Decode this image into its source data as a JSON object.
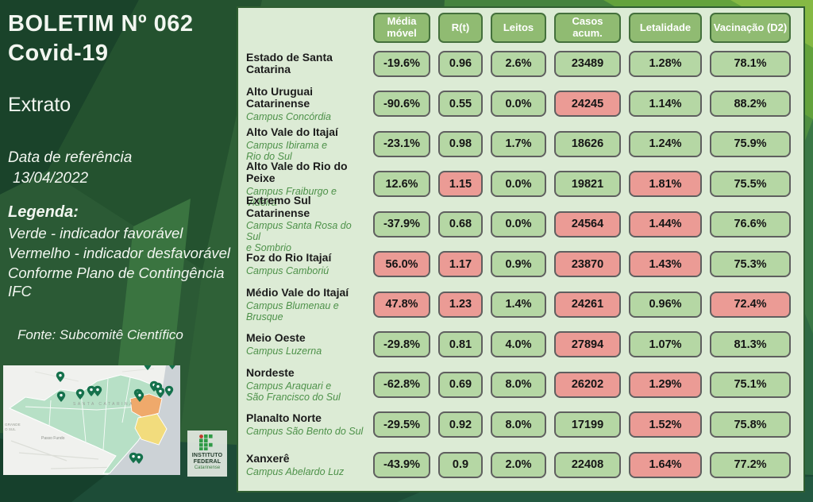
{
  "sidebar": {
    "title_line1": "BOLETIM Nº 062",
    "title_line2": "Covid-19",
    "subtitle": "Extrato",
    "date_label": "Data de referência",
    "date_value": "13/04/2022",
    "legend_title": "Legenda:",
    "legend_lines": [
      "Verde - indicador favorável",
      "Vermelho - indicador desfavorável",
      "Conforme Plano de Contingência IFC"
    ],
    "source": "Fonte: Subcomitê Científico",
    "map": {
      "state_label": "SANTA CATARINA",
      "neighbor_lines": [
        "GRANDE",
        "O SUL"
      ],
      "city_label": "Passo Fundo",
      "colors": {
        "state": "#b7e0c6",
        "alert_orange": "#efa96b",
        "alert_yellow": "#f2dc7d",
        "sea": "#ccd2d6",
        "land": "#f0f1ee",
        "pin": "#15714c"
      }
    },
    "logo": {
      "line1": "INSTITUTO",
      "line2": "FEDERAL",
      "line3": "Catarinense"
    }
  },
  "table": {
    "columns": [
      "Média móvel",
      "R(t)",
      "Leitos",
      "Casos acum.",
      "Letalidade",
      "Vacinação (D2)"
    ],
    "status_colors": {
      "favorable": "#b5d7a4",
      "unfavorable": "#eb9b95"
    },
    "rows": [
      {
        "region": "Estado de Santa Catarina",
        "campus": "",
        "cells": [
          {
            "value": "-19.6%",
            "status": "favorable"
          },
          {
            "value": "0.96",
            "status": "favorable"
          },
          {
            "value": "2.6%",
            "status": "favorable"
          },
          {
            "value": "23489",
            "status": "favorable"
          },
          {
            "value": "1.28%",
            "status": "favorable"
          },
          {
            "value": "78.1%",
            "status": "favorable"
          }
        ]
      },
      {
        "region": "Alto Uruguai Catarinense",
        "campus": "Campus Concórdia",
        "cells": [
          {
            "value": "-90.6%",
            "status": "favorable"
          },
          {
            "value": "0.55",
            "status": "favorable"
          },
          {
            "value": "0.0%",
            "status": "favorable"
          },
          {
            "value": "24245",
            "status": "unfavorable"
          },
          {
            "value": "1.14%",
            "status": "favorable"
          },
          {
            "value": "88.2%",
            "status": "favorable"
          }
        ]
      },
      {
        "region": "Alto Vale do Itajaí",
        "campus": "Campus Ibirama e\nRio do Sul",
        "cells": [
          {
            "value": "-23.1%",
            "status": "favorable"
          },
          {
            "value": "0.98",
            "status": "favorable"
          },
          {
            "value": "1.7%",
            "status": "favorable"
          },
          {
            "value": "18626",
            "status": "favorable"
          },
          {
            "value": "1.24%",
            "status": "favorable"
          },
          {
            "value": "75.9%",
            "status": "favorable"
          }
        ]
      },
      {
        "region": "Alto Vale do Rio do Peixe",
        "campus": "Campus Fraiburgo e Videira",
        "cells": [
          {
            "value": "12.6%",
            "status": "favorable"
          },
          {
            "value": "1.15",
            "status": "unfavorable"
          },
          {
            "value": "0.0%",
            "status": "favorable"
          },
          {
            "value": "19821",
            "status": "favorable"
          },
          {
            "value": "1.81%",
            "status": "unfavorable"
          },
          {
            "value": "75.5%",
            "status": "favorable"
          }
        ]
      },
      {
        "region": "Extremo Sul Catarinense",
        "campus": "Campus Santa Rosa do Sul\ne Sombrio",
        "cells": [
          {
            "value": "-37.9%",
            "status": "favorable"
          },
          {
            "value": "0.68",
            "status": "favorable"
          },
          {
            "value": "0.0%",
            "status": "favorable"
          },
          {
            "value": "24564",
            "status": "unfavorable"
          },
          {
            "value": "1.44%",
            "status": "unfavorable"
          },
          {
            "value": "76.6%",
            "status": "favorable"
          }
        ]
      },
      {
        "region": "Foz do Rio Itajaí",
        "campus": "Campus Camboriú",
        "cells": [
          {
            "value": "56.0%",
            "status": "unfavorable"
          },
          {
            "value": "1.17",
            "status": "unfavorable"
          },
          {
            "value": "0.9%",
            "status": "favorable"
          },
          {
            "value": "23870",
            "status": "unfavorable"
          },
          {
            "value": "1.43%",
            "status": "unfavorable"
          },
          {
            "value": "75.3%",
            "status": "favorable"
          }
        ]
      },
      {
        "region": "Médio Vale do Itajaí",
        "campus": "Campus Blumenau e\nBrusque",
        "cells": [
          {
            "value": "47.8%",
            "status": "unfavorable"
          },
          {
            "value": "1.23",
            "status": "unfavorable"
          },
          {
            "value": "1.4%",
            "status": "favorable"
          },
          {
            "value": "24261",
            "status": "unfavorable"
          },
          {
            "value": "0.96%",
            "status": "favorable"
          },
          {
            "value": "72.4%",
            "status": "unfavorable"
          }
        ]
      },
      {
        "region": "Meio Oeste",
        "campus": "Campus Luzerna",
        "cells": [
          {
            "value": "-29.8%",
            "status": "favorable"
          },
          {
            "value": "0.81",
            "status": "favorable"
          },
          {
            "value": "4.0%",
            "status": "favorable"
          },
          {
            "value": "27894",
            "status": "unfavorable"
          },
          {
            "value": "1.07%",
            "status": "favorable"
          },
          {
            "value": "81.3%",
            "status": "favorable"
          }
        ]
      },
      {
        "region": "Nordeste",
        "campus": "Campus Araquari e\nSão Francisco do Sul",
        "cells": [
          {
            "value": "-62.8%",
            "status": "favorable"
          },
          {
            "value": "0.69",
            "status": "favorable"
          },
          {
            "value": "8.0%",
            "status": "favorable"
          },
          {
            "value": "26202",
            "status": "unfavorable"
          },
          {
            "value": "1.29%",
            "status": "unfavorable"
          },
          {
            "value": "75.1%",
            "status": "favorable"
          }
        ]
      },
      {
        "region": "Planalto Norte",
        "campus": "Campus São Bento do Sul",
        "cells": [
          {
            "value": "-29.5%",
            "status": "favorable"
          },
          {
            "value": "0.92",
            "status": "favorable"
          },
          {
            "value": "8.0%",
            "status": "favorable"
          },
          {
            "value": "17199",
            "status": "favorable"
          },
          {
            "value": "1.52%",
            "status": "unfavorable"
          },
          {
            "value": "75.8%",
            "status": "favorable"
          }
        ]
      },
      {
        "region": "Xanxerê",
        "campus": "Campus Abelardo Luz",
        "cells": [
          {
            "value": "-43.9%",
            "status": "favorable"
          },
          {
            "value": "0.9",
            "status": "favorable"
          },
          {
            "value": "2.0%",
            "status": "favorable"
          },
          {
            "value": "22408",
            "status": "favorable"
          },
          {
            "value": "1.64%",
            "status": "unfavorable"
          },
          {
            "value": "77.2%",
            "status": "favorable"
          }
        ]
      }
    ]
  }
}
